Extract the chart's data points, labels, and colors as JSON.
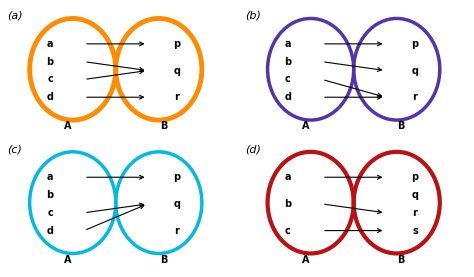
{
  "panels": [
    {
      "label": "(a)",
      "color": "#FF8C00",
      "left_labels": [
        "a",
        "b",
        "c",
        "d"
      ],
      "right_labels": [
        "p",
        "q",
        "r"
      ],
      "arrows": [
        [
          0,
          0
        ],
        [
          1,
          1
        ],
        [
          2,
          1
        ],
        [
          3,
          2
        ]
      ],
      "lw": 3.5
    },
    {
      "label": "(b)",
      "color": "#5533AA",
      "left_labels": [
        "a",
        "b",
        "c",
        "d"
      ],
      "right_labels": [
        "p",
        "q",
        "r"
      ],
      "arrows": [
        [
          0,
          0
        ],
        [
          1,
          1
        ],
        [
          2,
          2
        ],
        [
          3,
          2
        ]
      ],
      "lw": 2.5
    },
    {
      "label": "(c)",
      "color": "#00BBDD",
      "left_labels": [
        "a",
        "b",
        "c",
        "d"
      ],
      "right_labels": [
        "p",
        "q",
        "r"
      ],
      "arrows": [
        [
          0,
          0
        ],
        [
          2,
          1
        ],
        [
          3,
          1
        ]
      ],
      "lw": 2.5
    },
    {
      "label": "(d)",
      "color": "#BB1111",
      "left_labels": [
        "a",
        "b",
        "c"
      ],
      "right_labels": [
        "p",
        "q",
        "r",
        "s"
      ],
      "arrows": [
        [
          0,
          0
        ],
        [
          1,
          2
        ],
        [
          2,
          3
        ]
      ],
      "lw": 3.0
    }
  ],
  "bg_color": "#ffffff"
}
